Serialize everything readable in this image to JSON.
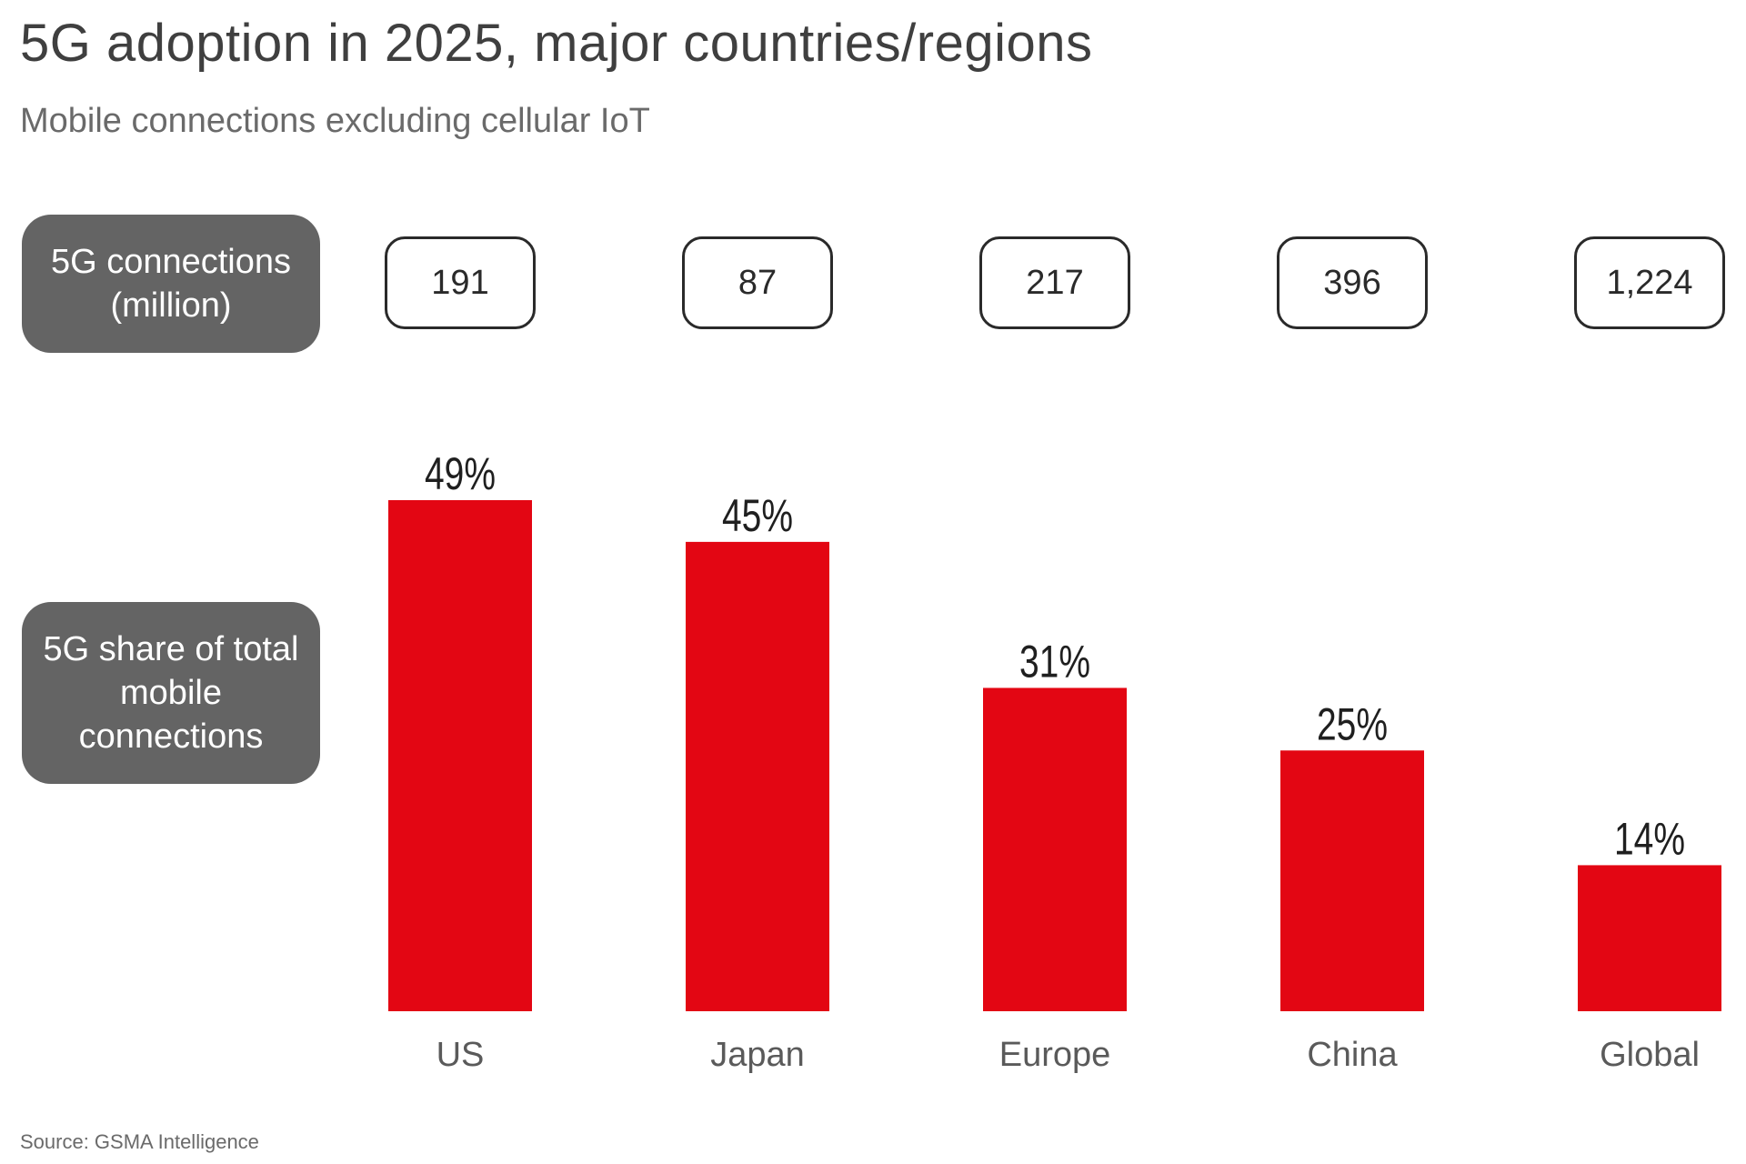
{
  "title": "5G adoption in 2025, major countries/regions",
  "subtitle": "Mobile connections excluding cellular IoT",
  "row_labels": {
    "connections": "5G connections (million)",
    "share": "5G share of total mobile connections"
  },
  "source": "Source: GSMA Intelligence",
  "colors": {
    "bar": "#e30613",
    "label_bg": "#646464"
  },
  "chart_data": {
    "type": "bar",
    "title": "5G adoption in 2025, major countries/regions",
    "subtitle": "Mobile connections excluding cellular IoT",
    "categories": [
      "US",
      "Japan",
      "Europe",
      "China",
      "Global"
    ],
    "series": [
      {
        "name": "5G share of total mobile connections",
        "values": [
          49,
          45,
          31,
          25,
          14
        ],
        "labels": [
          "49%",
          "45%",
          "31%",
          "25%",
          "14%"
        ]
      },
      {
        "name": "5G connections (million)",
        "values": [
          191,
          87,
          217,
          396,
          1224
        ],
        "labels": [
          "191",
          "87",
          "217",
          "396",
          "1,224"
        ]
      }
    ],
    "xlabel": "",
    "ylabel": "",
    "ylim": [
      0,
      49
    ],
    "grid": false,
    "legend": "none"
  }
}
